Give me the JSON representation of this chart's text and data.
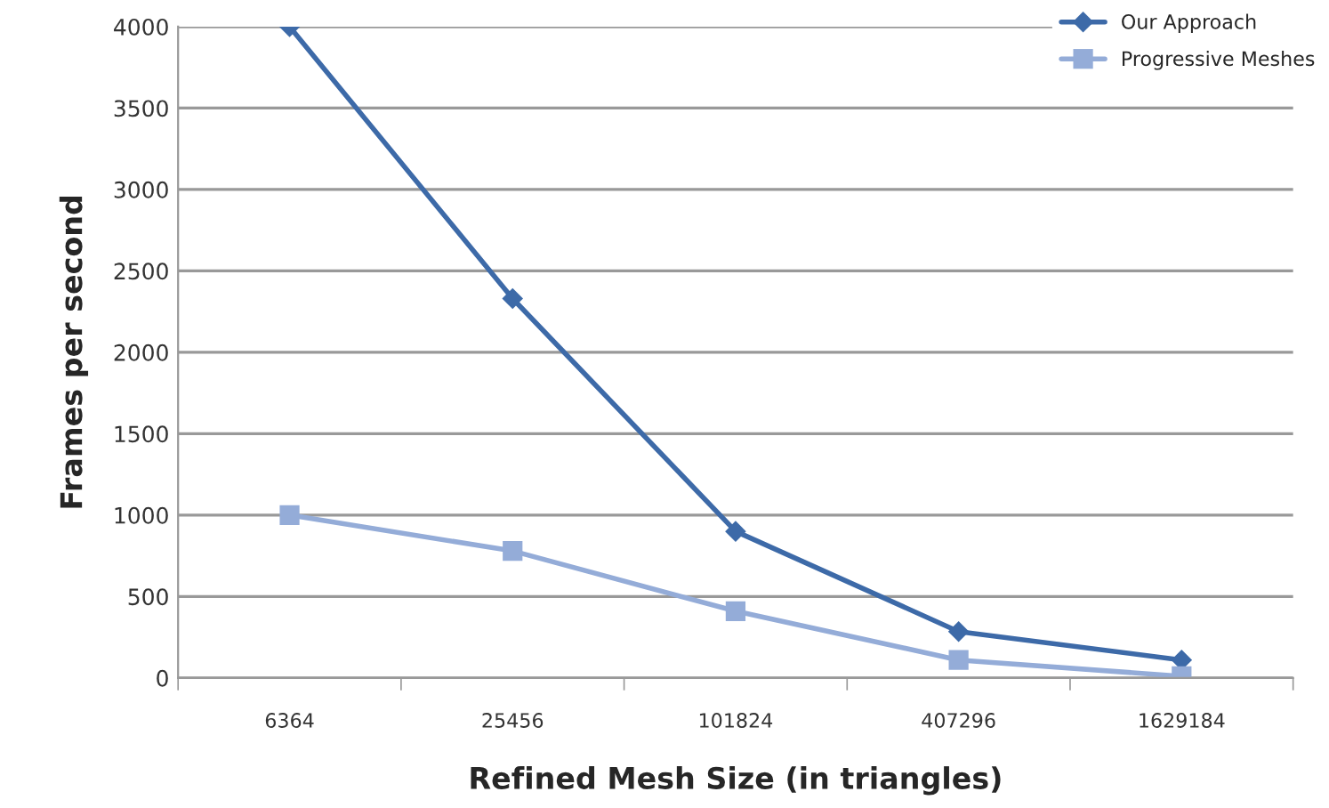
{
  "chart_data": {
    "type": "line",
    "xlabel": "Refined Mesh Size (in triangles)",
    "ylabel": "Frames per second",
    "categories": [
      "6364",
      "25456",
      "101824",
      "407296",
      "1629184"
    ],
    "series": [
      {
        "name": "Our Approach",
        "color": "#3d6aa8",
        "marker": "diamond",
        "values": [
          4000,
          2330,
          900,
          285,
          110
        ]
      },
      {
        "name": "Progressive Meshes",
        "color": "#94acd8",
        "marker": "square",
        "values": [
          1000,
          780,
          410,
          110,
          10
        ]
      }
    ],
    "ylim": [
      0,
      4000
    ],
    "yticks": [
      0,
      500,
      1000,
      1500,
      2000,
      2500,
      3000,
      3500,
      4000
    ],
    "grid": "y",
    "legend": "top right"
  }
}
